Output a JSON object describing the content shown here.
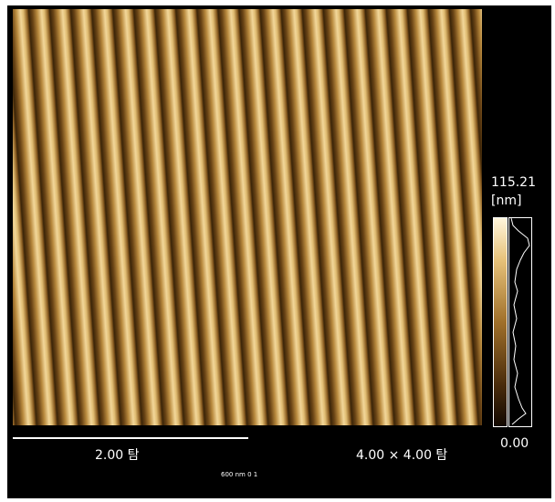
{
  "scan": {
    "scale_max": "115.21",
    "unit": "[nm]",
    "scale_min": "0.00",
    "scale_bar_label": "2.00 탐",
    "scan_size": "4.00 × 4.00 탐",
    "footer": "600 nm 0 1"
  }
}
